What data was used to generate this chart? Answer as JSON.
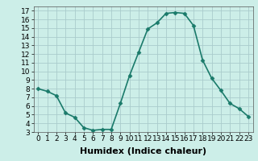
{
  "x": [
    0,
    1,
    2,
    3,
    4,
    5,
    6,
    7,
    8,
    9,
    10,
    11,
    12,
    13,
    14,
    15,
    16,
    17,
    18,
    19,
    20,
    21,
    22,
    23
  ],
  "y": [
    8,
    7.7,
    7.2,
    5.2,
    4.7,
    3.5,
    3.2,
    3.3,
    3.3,
    6.3,
    9.5,
    12.2,
    14.9,
    15.6,
    16.7,
    16.8,
    16.7,
    15.3,
    11.3,
    9.2,
    7.8,
    6.3,
    5.7,
    4.8
  ],
  "line_color": "#1a7a6a",
  "marker": "D",
  "markersize": 2.5,
  "bg_color": "#cceee8",
  "grid_color": "#aacccc",
  "xlabel": "Humidex (Indice chaleur)",
  "xlabel_fontsize": 8,
  "xlim": [
    -0.5,
    23.5
  ],
  "ylim": [
    3,
    17.5
  ],
  "yticks": [
    3,
    4,
    5,
    6,
    7,
    8,
    9,
    10,
    11,
    12,
    13,
    14,
    15,
    16,
    17
  ],
  "xticks": [
    0,
    1,
    2,
    3,
    4,
    5,
    6,
    7,
    8,
    9,
    10,
    11,
    12,
    13,
    14,
    15,
    16,
    17,
    18,
    19,
    20,
    21,
    22,
    23
  ],
  "tick_fontsize": 6.5,
  "linewidth": 1.2
}
